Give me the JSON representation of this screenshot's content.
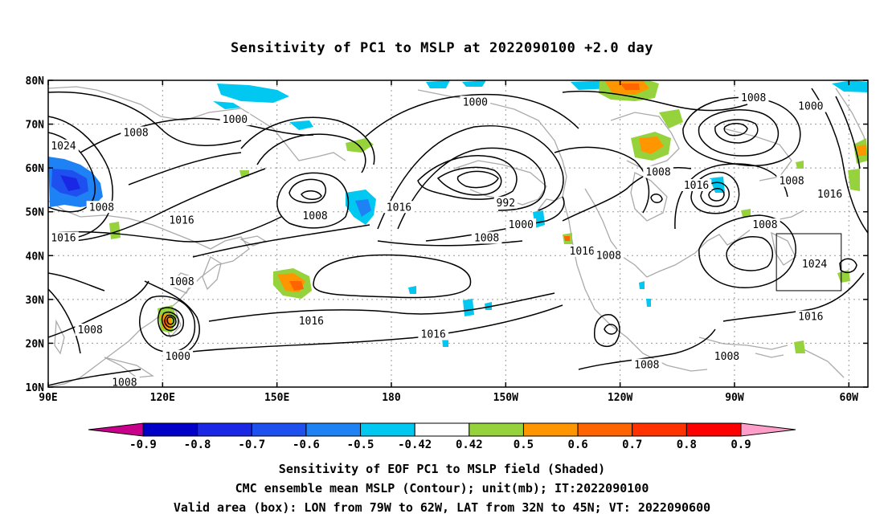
{
  "title": "Sensitivity of PC1 to MSLP at 2022090100 +2.0 day",
  "map": {
    "lat_labels": [
      "80N",
      "70N",
      "60N",
      "50N",
      "40N",
      "30N",
      "20N",
      "10N"
    ],
    "lon_labels": [
      "90E",
      "120E",
      "150E",
      "180",
      "150W",
      "120W",
      "90W",
      "60W"
    ],
    "lat_range": [
      10,
      80
    ],
    "lon_range_east": [
      90,
      305
    ],
    "valid_box": {
      "lon_west": -79,
      "lon_east": -62,
      "lat_south": 32,
      "lat_north": 45
    },
    "contour_labels": [
      {
        "text": "1024",
        "lon": 94,
        "lat": 65
      },
      {
        "text": "1008",
        "lon": 113,
        "lat": 68
      },
      {
        "text": "1000",
        "lon": 139,
        "lat": 71
      },
      {
        "text": "1008",
        "lon": 104,
        "lat": 51
      },
      {
        "text": "1016",
        "lon": 125,
        "lat": 48
      },
      {
        "text": "1008",
        "lon": 160,
        "lat": 49
      },
      {
        "text": "1016",
        "lon": 182,
        "lat": 51
      },
      {
        "text": "1016",
        "lon": 94,
        "lat": 44
      },
      {
        "text": "1000",
        "lon": 202,
        "lat": 75
      },
      {
        "text": "992",
        "lon": 210,
        "lat": 52
      },
      {
        "text": "1000",
        "lon": 214,
        "lat": 47
      },
      {
        "text": "1008",
        "lon": 205,
        "lat": 44
      },
      {
        "text": "1016",
        "lon": 230,
        "lat": 41
      },
      {
        "text": "1008",
        "lon": 237,
        "lat": 40
      },
      {
        "text": "1008",
        "lon": 250,
        "lat": 59
      },
      {
        "text": "1016",
        "lon": 260,
        "lat": 56
      },
      {
        "text": "1008",
        "lon": 275,
        "lat": 76
      },
      {
        "text": "1000",
        "lon": 290,
        "lat": 74
      },
      {
        "text": "1008",
        "lon": 285,
        "lat": 57
      },
      {
        "text": "1016",
        "lon": 295,
        "lat": 54
      },
      {
        "text": "1008",
        "lon": 278,
        "lat": 47
      },
      {
        "text": "1024",
        "lon": 291,
        "lat": 38
      },
      {
        "text": "1016",
        "lon": 290,
        "lat": 26
      },
      {
        "text": "1008",
        "lon": 125,
        "lat": 34
      },
      {
        "text": "1008",
        "lon": 101,
        "lat": 23
      },
      {
        "text": "1000",
        "lon": 124,
        "lat": 17
      },
      {
        "text": "1008",
        "lon": 110,
        "lat": 11
      },
      {
        "text": "1016",
        "lon": 159,
        "lat": 25
      },
      {
        "text": "1016",
        "lon": 191,
        "lat": 22
      },
      {
        "text": "1008",
        "lon": 247,
        "lat": 15
      },
      {
        "text": "1008",
        "lon": 268,
        "lat": 17
      }
    ]
  },
  "colorbar": {
    "labels": [
      "-0.9",
      "-0.8",
      "-0.7",
      "-0.6",
      "-0.5",
      "-0.42",
      "0.42",
      "0.5",
      "0.6",
      "0.7",
      "0.8",
      "0.9"
    ],
    "colors": [
      "#c8008a",
      "#0000c8",
      "#1a28e6",
      "#1e50f0",
      "#1e82f5",
      "#00c8f0",
      "#ffffff",
      "#96d23c",
      "#ff9600",
      "#ff6400",
      "#ff3200",
      "#ff0000",
      "#ff9ec8"
    ]
  },
  "captions": {
    "line1": "Sensitivity of EOF PC1 to MSLP field (Shaded)",
    "line2": "CMC ensemble mean MSLP (Contour); unit(mb); IT:2022090100",
    "line3": "Valid area (box): LON from 79W to 62W, LAT from 32N to 45N; VT: 2022090600"
  }
}
